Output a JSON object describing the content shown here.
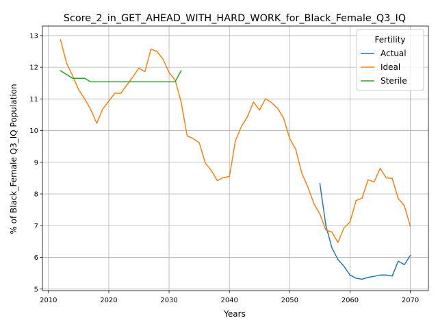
{
  "chart_data": {
    "type": "line",
    "title": "Score_2_in_GET_AHEAD_WITH_HARD_WORK_for_Black_Female_Q3_IQ",
    "xlabel": "Years",
    "ylabel": "% of Black_Female Q3_IQ Population",
    "xlim": [
      2009,
      2073
    ],
    "ylim": [
      4.95,
      13.3
    ],
    "xticks": [
      2010,
      2020,
      2030,
      2040,
      2050,
      2060,
      2070
    ],
    "yticks": [
      5,
      6,
      7,
      8,
      9,
      10,
      11,
      12,
      13
    ],
    "grid": true,
    "legend": {
      "title": "Fertility",
      "placement": "top-right"
    },
    "series": [
      {
        "name": "Actual",
        "color": "#1f77b4",
        "x": [
          2055,
          2056,
          2057,
          2058,
          2059,
          2060,
          2061,
          2062,
          2063,
          2064,
          2065,
          2066,
          2067,
          2068,
          2069,
          2070
        ],
        "y": [
          8.33,
          7.0,
          6.3,
          5.93,
          5.72,
          5.44,
          5.34,
          5.31,
          5.37,
          5.4,
          5.44,
          5.44,
          5.41,
          5.88,
          5.77,
          6.06
        ]
      },
      {
        "name": "Ideal",
        "color": "#ff7f0e",
        "x": [
          2012,
          2013,
          2014,
          2015,
          2016,
          2017,
          2018,
          2019,
          2020,
          2021,
          2022,
          2023,
          2024,
          2025,
          2026,
          2027,
          2028,
          2029,
          2030,
          2031,
          2032,
          2033,
          2034,
          2035,
          2036,
          2037,
          2038,
          2039,
          2040,
          2041,
          2042,
          2043,
          2044,
          2045,
          2046,
          2047,
          2048,
          2049,
          2050,
          2051,
          2052,
          2053,
          2054,
          2055,
          2056,
          2057,
          2058,
          2059,
          2060,
          2061,
          2062,
          2063,
          2064,
          2065,
          2066,
          2067,
          2068,
          2069,
          2070
        ],
        "y": [
          12.87,
          12.13,
          11.73,
          11.29,
          11.0,
          10.67,
          10.23,
          10.68,
          10.93,
          11.18,
          11.18,
          11.44,
          11.7,
          11.97,
          11.86,
          12.57,
          12.5,
          12.25,
          11.83,
          11.6,
          10.9,
          9.83,
          9.75,
          9.62,
          8.98,
          8.74,
          8.42,
          8.52,
          8.55,
          9.68,
          10.13,
          10.44,
          10.9,
          10.65,
          11.01,
          10.88,
          10.7,
          10.39,
          9.75,
          9.41,
          8.66,
          8.22,
          7.7,
          7.37,
          6.86,
          6.8,
          6.47,
          6.93,
          7.11,
          7.79,
          7.87,
          8.45,
          8.38,
          8.81,
          8.51,
          8.49,
          7.86,
          7.63,
          6.98
        ]
      },
      {
        "name": "Sterile",
        "color": "#2ca02c",
        "x": [
          2012,
          2013,
          2014,
          2015,
          2016,
          2017,
          2018,
          2019,
          2020,
          2021,
          2022,
          2023,
          2024,
          2025,
          2026,
          2027,
          2028,
          2029,
          2030,
          2031,
          2032
        ],
        "y": [
          11.89,
          11.77,
          11.65,
          11.65,
          11.65,
          11.54,
          11.54,
          11.54,
          11.54,
          11.54,
          11.54,
          11.54,
          11.54,
          11.54,
          11.54,
          11.54,
          11.54,
          11.54,
          11.54,
          11.54,
          11.89
        ]
      }
    ]
  }
}
